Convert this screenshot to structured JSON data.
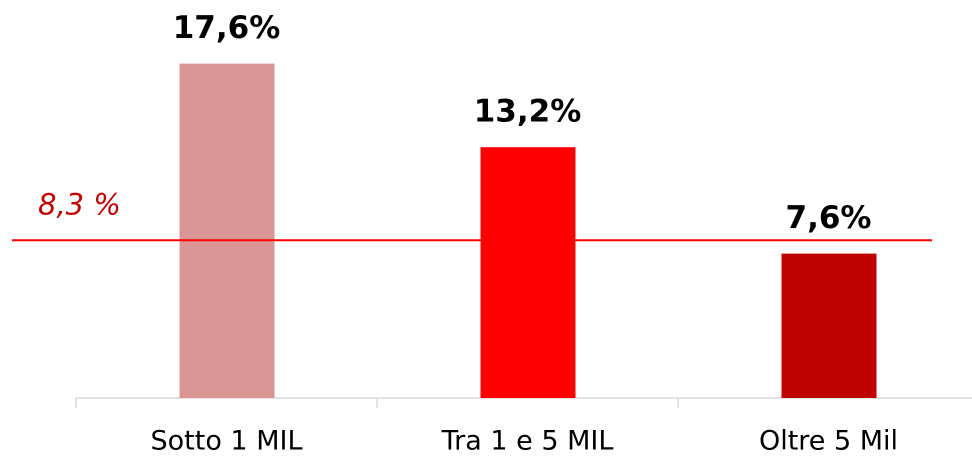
{
  "chart_data": {
    "type": "bar",
    "categories": [
      "Sotto 1 MIL",
      "Tra 1 e 5 MIL",
      "Oltre 5 Mil"
    ],
    "values": [
      17.6,
      13.2,
      7.6
    ],
    "value_labels": [
      "17,6%",
      "13,2%",
      "7,6%"
    ],
    "colors": [
      "#d99694",
      "#ff0000",
      "#c00000"
    ],
    "ylim": [
      0,
      20
    ],
    "reference_line": {
      "value": 8.3,
      "label": "8,3 %",
      "color": "#ff0000",
      "label_color": "#c00000"
    }
  }
}
